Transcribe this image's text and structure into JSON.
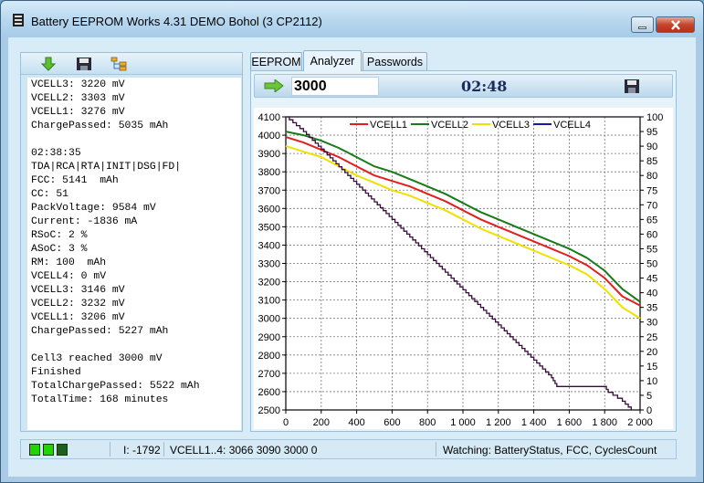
{
  "window": {
    "title": "Battery EEPROM Works  4.31 DEMO Bohol (3 CP2112)"
  },
  "log_lines": [
    "VCELL3: 3220 mV",
    "VCELL2: 3303 mV",
    "VCELL1: 3276 mV",
    "ChargePassed: 5035 mAh",
    "",
    "02:38:35",
    "TDA|RCA|RTA|INIT|DSG|FD|",
    "FCC: 5141  mAh",
    "CC: 51",
    "PackVoltage: 9584 mV",
    "Current: -1836 mA",
    "RSoC: 2 %",
    "ASoC: 3 %",
    "RM: 100  mAh",
    "VCELL4: 0 mV",
    "VCELL3: 3146 mV",
    "VCELL2: 3232 mV",
    "VCELL1: 3206 mV",
    "ChargePassed: 5227 mAh",
    "",
    "Cell3 reached 3000 mV",
    "Finished",
    "TotalChargePassed: 5522 mAh",
    "TotalTime: 168 minutes"
  ],
  "tabs": [
    {
      "label": "EEPROM",
      "active": false
    },
    {
      "label": "Analyzer",
      "active": true
    },
    {
      "label": "Passwords",
      "active": false
    }
  ],
  "analyzer": {
    "threshold_value": "3000",
    "elapsed_time": "02:48"
  },
  "statusbar": {
    "current": "I: -1792",
    "cells": "VCELL1..4: 3066 3090 3000 0",
    "watching": "Watching: BatteryStatus, FCC, CyclesCount",
    "led_color": "#22d400"
  },
  "chart_data": {
    "type": "line",
    "x_ticks": [
      "0",
      "200",
      "400",
      "600",
      "800",
      "1 000",
      "1 200",
      "1 400",
      "1 600",
      "1 800",
      "2 000"
    ],
    "xlim": [
      0,
      2000
    ],
    "y_left_ticks": [
      "2500",
      "2600",
      "2700",
      "2800",
      "2900",
      "3000",
      "3100",
      "3200",
      "3300",
      "3400",
      "3500",
      "3600",
      "3700",
      "3800",
      "3900",
      "4000",
      "4100"
    ],
    "ylim_left": [
      2500,
      4100
    ],
    "y_right_ticks": [
      "0",
      "5",
      "10",
      "15",
      "20",
      "25",
      "30",
      "35",
      "40",
      "45",
      "50",
      "55",
      "60",
      "65",
      "70",
      "75",
      "80",
      "85",
      "90",
      "95",
      "100"
    ],
    "ylim_right": [
      0,
      100
    ],
    "grid": true,
    "legend_position": "top",
    "series": [
      {
        "name": "VCELL1",
        "color": "#e02020",
        "axis": "left",
        "x": [
          0,
          100,
          200,
          300,
          400,
          500,
          600,
          700,
          800,
          900,
          1000,
          1100,
          1200,
          1300,
          1400,
          1500,
          1600,
          1700,
          1800,
          1900,
          2000
        ],
        "y": [
          3990,
          3960,
          3920,
          3880,
          3830,
          3780,
          3750,
          3720,
          3680,
          3640,
          3590,
          3540,
          3500,
          3460,
          3420,
          3380,
          3340,
          3290,
          3220,
          3120,
          3070
        ]
      },
      {
        "name": "VCELL2",
        "color": "#1a7a1a",
        "axis": "left",
        "x": [
          0,
          100,
          200,
          300,
          400,
          500,
          600,
          700,
          800,
          900,
          1000,
          1100,
          1200,
          1300,
          1400,
          1500,
          1600,
          1700,
          1800,
          1900,
          2000
        ],
        "y": [
          4020,
          4000,
          3970,
          3930,
          3880,
          3830,
          3800,
          3760,
          3720,
          3680,
          3630,
          3580,
          3540,
          3500,
          3460,
          3420,
          3380,
          3330,
          3260,
          3160,
          3090
        ]
      },
      {
        "name": "VCELL3",
        "color": "#f0e000",
        "axis": "left",
        "x": [
          0,
          100,
          200,
          300,
          400,
          500,
          600,
          700,
          800,
          900,
          1000,
          1100,
          1200,
          1300,
          1400,
          1500,
          1600,
          1700,
          1800,
          1900,
          2000
        ],
        "y": [
          3940,
          3910,
          3880,
          3830,
          3780,
          3740,
          3700,
          3670,
          3630,
          3590,
          3540,
          3490,
          3450,
          3410,
          3370,
          3330,
          3290,
          3240,
          3160,
          3060,
          3000
        ]
      },
      {
        "name": "VCELL4",
        "color": "#1a1aa0",
        "axis": "left",
        "x": [],
        "y": []
      },
      {
        "name": "",
        "color": "#3b0a3b",
        "axis": "right",
        "x": [
          0,
          100,
          200,
          300,
          400,
          500,
          600,
          700,
          800,
          900,
          1000,
          1100,
          1200,
          1300,
          1400,
          1500,
          1530,
          1700,
          1800,
          1820,
          1900,
          1950
        ],
        "y": [
          100,
          95,
          89,
          83,
          77,
          71,
          65,
          59,
          53,
          47,
          41,
          35,
          29,
          23,
          17,
          11,
          8,
          8,
          8,
          6,
          3,
          0
        ]
      }
    ]
  }
}
